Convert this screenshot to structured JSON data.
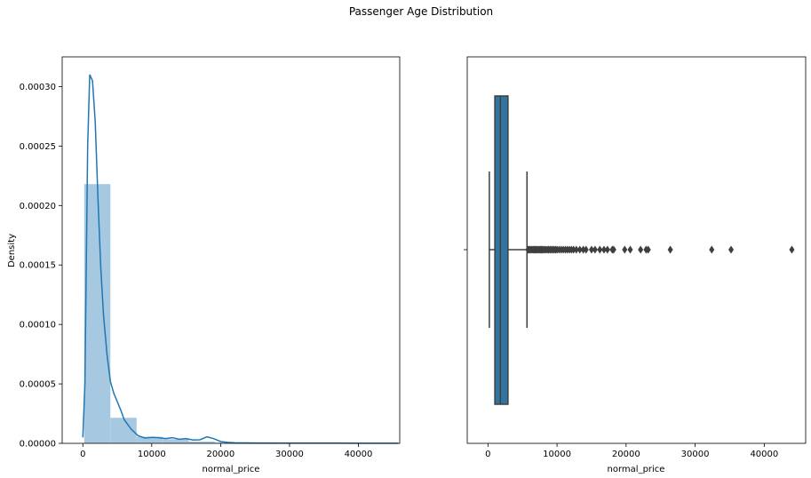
{
  "figure": {
    "suptitle": "Passenger Age Distribution"
  },
  "colors": {
    "hist_fill": "#a6c8e0",
    "kde_line": "#1f77b4",
    "box_fill": "#3274a1",
    "box_edge": "#3f3f3f",
    "axis": "#000000"
  },
  "chart_data": [
    {
      "type": "histogram+kde",
      "title": "",
      "xlabel": "normal_price",
      "ylabel": "Density",
      "xlim": [
        -3000,
        46000
      ],
      "ylim": [
        0,
        0.000325
      ],
      "x_ticks": [
        0,
        10000,
        20000,
        30000,
        40000
      ],
      "x_tick_labels": [
        "0",
        "10000",
        "20000",
        "30000",
        "40000"
      ],
      "y_ticks": [
        0,
        5e-05,
        0.0001,
        0.00015,
        0.0002,
        0.00025,
        0.0003
      ],
      "y_tick_labels": [
        "0.00000",
        "0.00005",
        "0.00010",
        "0.00015",
        "0.00020",
        "0.00025",
        "0.00030"
      ],
      "bins": {
        "edges": [
          200,
          4000,
          7800,
          11600,
          15400,
          19200,
          23000,
          26800,
          30600,
          34400,
          38200,
          42000,
          45800
        ],
        "density": [
          0.000218,
          2.15e-05,
          5.5e-06,
          3.5e-06,
          1.5e-06,
          6e-07,
          2e-07,
          1e-07,
          5e-08,
          5e-08,
          3e-08,
          3e-08
        ]
      },
      "kde": {
        "x": [
          0,
          300,
          500,
          700,
          1000,
          1400,
          1800,
          2200,
          2600,
          3000,
          3500,
          4000,
          4500,
          5000,
          5500,
          6000,
          7000,
          8000,
          9000,
          10000,
          11000,
          12000,
          13000,
          14000,
          15000,
          16000,
          17000,
          18000,
          19000,
          20000,
          21000,
          22000,
          25000,
          30000,
          35000,
          40000,
          44000,
          45800
        ],
        "y": [
          5e-06,
          5e-05,
          0.00015,
          0.00025,
          0.00031,
          0.000305,
          0.00027,
          0.000205,
          0.000148,
          0.000108,
          7.5e-05,
          5.2e-05,
          4.2e-05,
          3.5e-05,
          2.8e-05,
          2e-05,
          1.2e-05,
          6.5e-06,
          4.5e-06,
          5e-06,
          4.8e-06,
          4e-06,
          4.8e-06,
          3.5e-06,
          4e-06,
          2.8e-06,
          3e-06,
          5.5e-06,
          4e-06,
          1.5e-06,
          8e-07,
          5e-07,
          3e-07,
          2e-07,
          2e-07,
          1e-07,
          1e-07,
          5e-08
        ]
      }
    },
    {
      "type": "box",
      "title": "",
      "xlabel": "normal_price",
      "ylabel": "",
      "xlim": [
        -3000,
        46000
      ],
      "x_ticks": [
        0,
        10000,
        20000,
        30000,
        40000
      ],
      "x_tick_labels": [
        "0",
        "10000",
        "20000",
        "30000",
        "40000"
      ],
      "box": {
        "whisker_low": 200,
        "q1": 1000,
        "median": 1800,
        "q3": 2900,
        "whisker_high": 5650
      },
      "outliers": [
        5800,
        5950,
        6100,
        6250,
        6400,
        6550,
        6700,
        6850,
        7000,
        7150,
        7300,
        7450,
        7600,
        7750,
        7900,
        8050,
        8200,
        8400,
        8600,
        8800,
        9000,
        9200,
        9400,
        9600,
        9800,
        10000,
        10300,
        10600,
        10900,
        11200,
        11500,
        11800,
        12100,
        12400,
        12800,
        13300,
        13800,
        14200,
        15000,
        15500,
        16200,
        16800,
        17300,
        18000,
        18200,
        19800,
        20600,
        22100,
        22900,
        23200,
        26400,
        32400,
        35200,
        44000
      ]
    }
  ]
}
